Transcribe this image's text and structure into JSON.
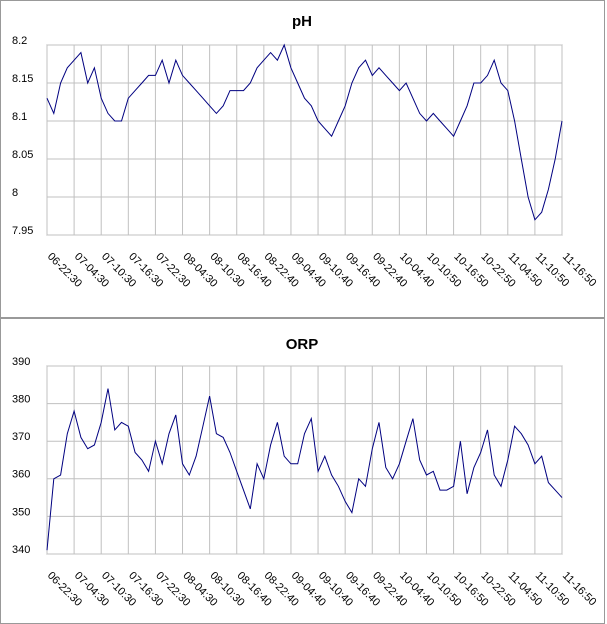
{
  "chart_data": [
    {
      "type": "line",
      "title": "pH",
      "color": "#000080",
      "categories": [
        "06-22:30",
        null,
        null,
        null,
        "07-04:30",
        null,
        null,
        null,
        "07-10:30",
        null,
        null,
        null,
        "07-16:30",
        null,
        null,
        null,
        "07-22:30",
        null,
        null,
        null,
        "08-04:30",
        null,
        null,
        null,
        "08-10:30",
        null,
        null,
        null,
        "08-16:40",
        null,
        null,
        null,
        "08-22:40",
        null,
        null,
        null,
        "09-04:40",
        null,
        null,
        null,
        "09-10:40",
        null,
        null,
        null,
        "09-16:40",
        null,
        null,
        null,
        "09-22:40",
        null,
        null,
        null,
        "10-04:40",
        null,
        null,
        null,
        "10-10:50",
        null,
        null,
        null,
        "10-16:50",
        null,
        null,
        null,
        "10-22:50",
        null,
        null,
        null,
        "11-04:50",
        null,
        null,
        null,
        "11-10:50",
        null,
        null,
        null,
        "11-16:50"
      ],
      "values": [
        8.13,
        8.11,
        8.15,
        8.17,
        8.18,
        8.19,
        8.15,
        8.17,
        8.13,
        8.11,
        8.1,
        8.1,
        8.13,
        8.14,
        8.15,
        8.16,
        8.16,
        8.18,
        8.15,
        8.18,
        8.16,
        8.15,
        8.14,
        8.13,
        8.12,
        8.11,
        8.12,
        8.14,
        8.14,
        8.14,
        8.15,
        8.17,
        8.18,
        8.19,
        8.18,
        8.2,
        8.17,
        8.15,
        8.13,
        8.12,
        8.1,
        8.09,
        8.08,
        8.1,
        8.12,
        8.15,
        8.17,
        8.18,
        8.16,
        8.17,
        8.16,
        8.15,
        8.14,
        8.15,
        8.13,
        8.11,
        8.1,
        8.11,
        8.1,
        8.09,
        8.08,
        8.1,
        8.12,
        8.15,
        8.15,
        8.16,
        8.18,
        8.15,
        8.14,
        8.1,
        8.05,
        8.0,
        7.97,
        7.98,
        8.01,
        8.05,
        8.1
      ],
      "ylim": [
        7.95,
        8.2
      ],
      "yticks": [
        7.95,
        8,
        8.05,
        8.1,
        8.15,
        8.2
      ],
      "grid": true
    },
    {
      "type": "line",
      "title": "ORP",
      "color": "#000080",
      "categories": [
        "06-22:30",
        null,
        null,
        null,
        "07-04:30",
        null,
        null,
        null,
        "07-10:30",
        null,
        null,
        null,
        "07-16:30",
        null,
        null,
        null,
        "07-22:30",
        null,
        null,
        null,
        "08-04:30",
        null,
        null,
        null,
        "08-10:30",
        null,
        null,
        null,
        "08-16:40",
        null,
        null,
        null,
        "08-22:40",
        null,
        null,
        null,
        "09-04:40",
        null,
        null,
        null,
        "09-10:40",
        null,
        null,
        null,
        "09-16:40",
        null,
        null,
        null,
        "09-22:40",
        null,
        null,
        null,
        "10-04:40",
        null,
        null,
        null,
        "10-10:50",
        null,
        null,
        null,
        "10-16:50",
        null,
        null,
        null,
        "10-22:50",
        null,
        null,
        null,
        "11-04:50",
        null,
        null,
        null,
        "11-10:50",
        null,
        null,
        null,
        "11-16:50"
      ],
      "values": [
        341,
        360,
        361,
        372,
        378,
        371,
        368,
        369,
        375,
        384,
        373,
        375,
        374,
        367,
        365,
        362,
        370,
        364,
        372,
        377,
        364,
        361,
        366,
        374,
        382,
        372,
        371,
        367,
        362,
        357,
        352,
        364,
        360,
        369,
        375,
        366,
        364,
        364,
        372,
        376,
        362,
        366,
        361,
        358,
        354,
        351,
        360,
        358,
        368,
        375,
        363,
        360,
        364,
        370,
        376,
        365,
        361,
        362,
        357,
        357,
        358,
        370,
        356,
        363,
        367,
        373,
        361,
        358,
        365,
        374,
        372,
        369,
        364,
        366,
        359,
        357,
        355
      ],
      "ylim": [
        340,
        390
      ],
      "yticks": [
        340,
        350,
        360,
        370,
        380,
        390
      ],
      "grid": true
    }
  ]
}
